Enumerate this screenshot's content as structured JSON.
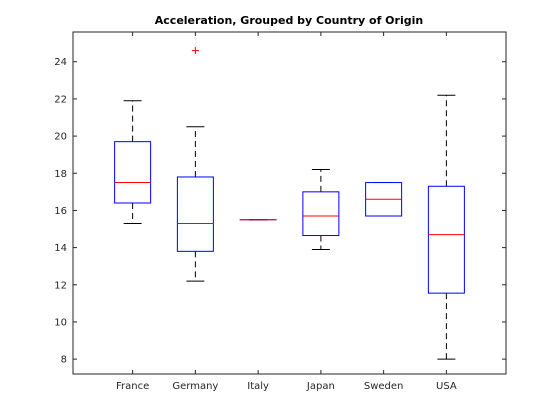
{
  "chart_data": {
    "type": "boxplot",
    "title": "Acceleration, Grouped by Country of Origin",
    "xlabel": "",
    "ylabel": "",
    "ylim": [
      7.2,
      25.6
    ],
    "yticks": [
      8,
      10,
      12,
      14,
      16,
      18,
      20,
      22,
      24
    ],
    "grid": false,
    "categories": [
      "France",
      "Germany",
      "Italy",
      "Japan",
      "Sweden",
      "USA"
    ],
    "boxes": [
      {
        "category": "France",
        "whisker_low": 15.3,
        "q1": 16.4,
        "median": 17.5,
        "q3": 19.7,
        "whisker_high": 21.9,
        "outliers": []
      },
      {
        "category": "Germany",
        "whisker_low": 12.2,
        "q1": 13.8,
        "median": 15.3,
        "q3": 17.8,
        "whisker_high": 20.5,
        "outliers": [
          24.6
        ]
      },
      {
        "category": "Italy",
        "whisker_low": 15.5,
        "q1": 15.5,
        "median": 15.5,
        "q3": 15.5,
        "whisker_high": 15.5,
        "outliers": []
      },
      {
        "category": "Japan",
        "whisker_low": 13.9,
        "q1": 14.65,
        "median": 15.7,
        "q3": 17.0,
        "whisker_high": 18.2,
        "outliers": []
      },
      {
        "category": "Sweden",
        "whisker_low": 15.7,
        "q1": 15.7,
        "median": 16.6,
        "q3": 17.5,
        "whisker_high": 17.5,
        "outliers": []
      },
      {
        "category": "USA",
        "whisker_low": 8.0,
        "q1": 11.55,
        "median": 14.7,
        "q3": 17.3,
        "whisker_high": 22.2,
        "outliers": []
      }
    ],
    "colors": {
      "box": "#0000ff",
      "median": "#ff0000",
      "whisker": "#000000",
      "outlier": "#ff0000",
      "axis": "#262626"
    }
  }
}
